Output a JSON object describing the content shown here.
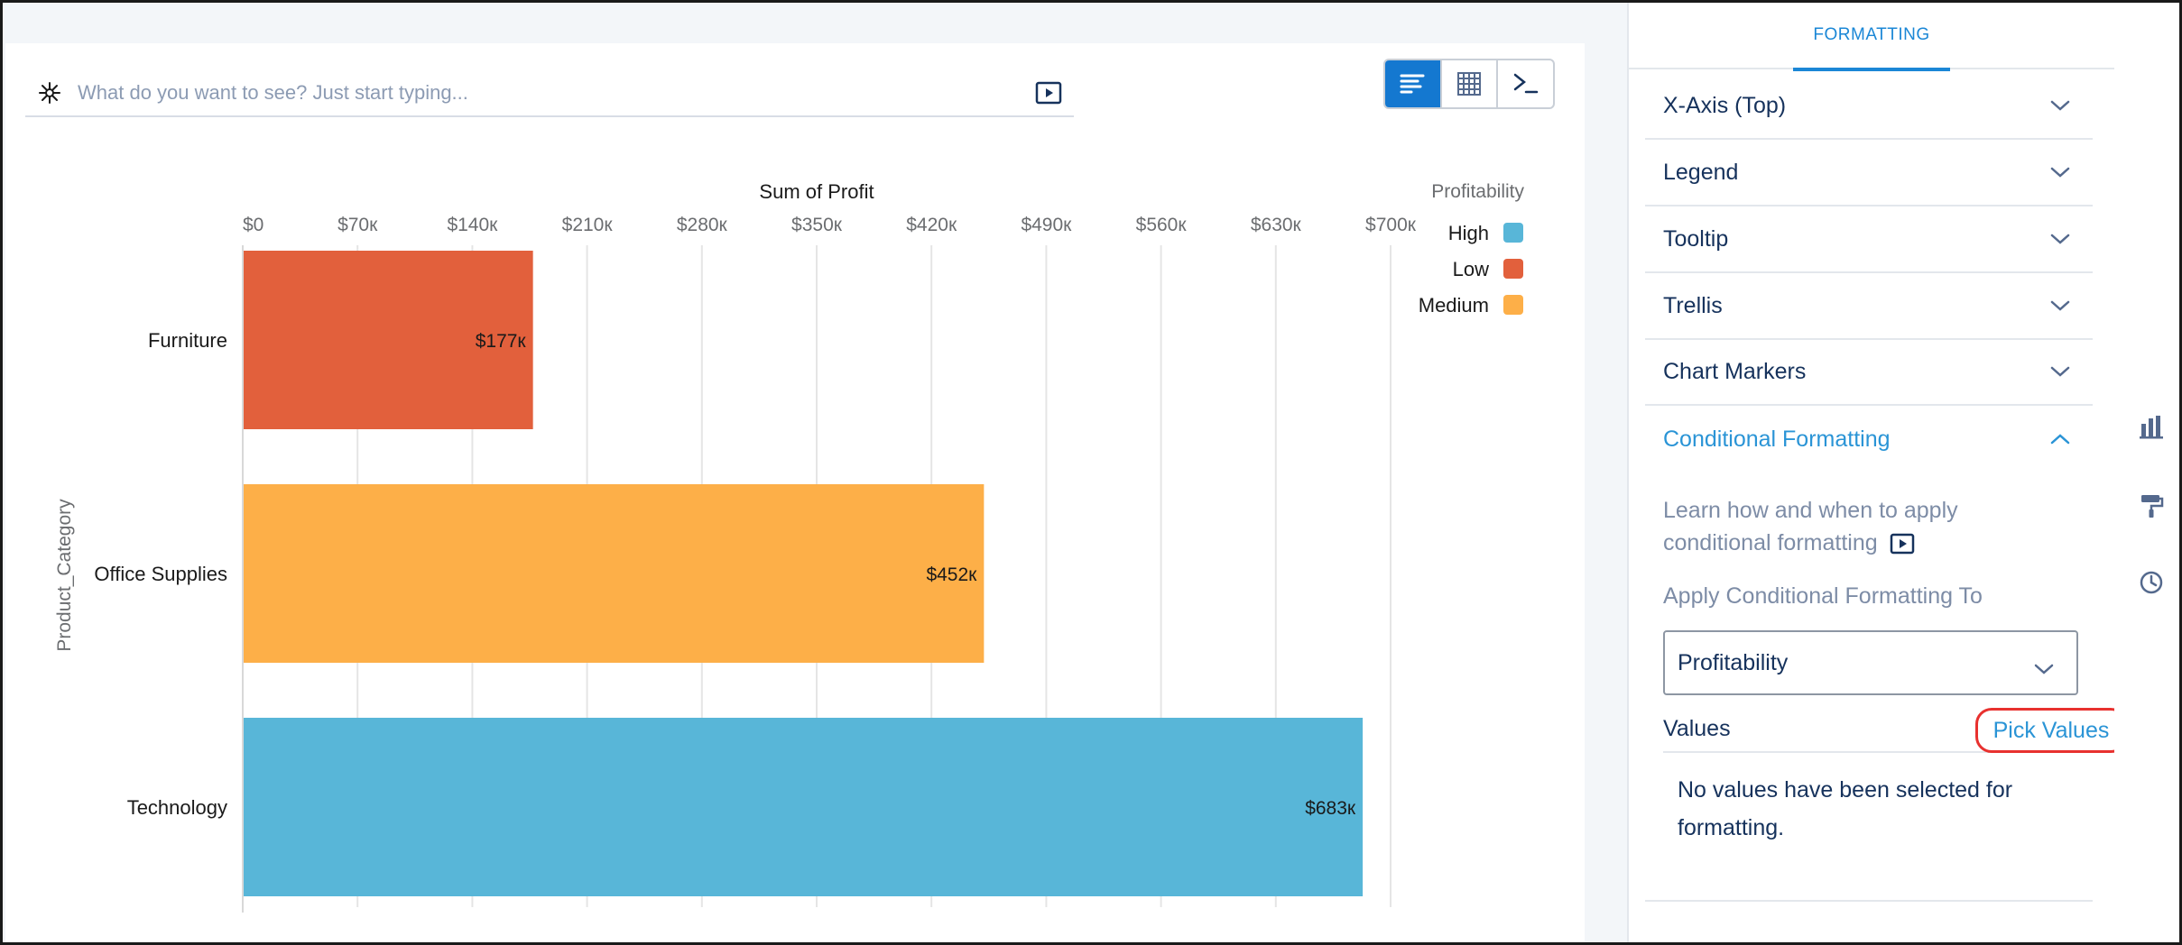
{
  "query": {
    "placeholder": "What do you want to see? Just start typing..."
  },
  "view_toggle": {
    "icons": [
      "bar-chart-icon",
      "table-icon",
      "terminal-icon"
    ],
    "active": "bar-chart-icon"
  },
  "chart_data": {
    "type": "bar",
    "orientation": "horizontal",
    "title": "Sum of Profit",
    "ylabel": "Product_Category",
    "categories": [
      "Furniture",
      "Office Supplies",
      "Technology"
    ],
    "values": [
      177000,
      452000,
      683000
    ],
    "value_labels": [
      "$177к",
      "$452к",
      "$683к"
    ],
    "groups": [
      "Low",
      "Medium",
      "High"
    ],
    "xlim": [
      0,
      700000
    ],
    "ticks": [
      0,
      70000,
      140000,
      210000,
      280000,
      350000,
      420000,
      490000,
      560000,
      630000,
      700000
    ],
    "tick_labels": [
      "$0",
      "$70к",
      "$140к",
      "$210к",
      "$280к",
      "$350к",
      "$420к",
      "$490к",
      "$560к",
      "$630к",
      "$700к"
    ],
    "axis_position": "top",
    "grid": true,
    "legend": {
      "title": "Profitability",
      "placement": "top-right",
      "items": [
        {
          "label": "High",
          "color": "#58b6d8"
        },
        {
          "label": "Low",
          "color": "#e2603c"
        },
        {
          "label": "Medium",
          "color": "#fdaf48"
        }
      ]
    }
  },
  "panel": {
    "tab": "FORMATTING",
    "sections": [
      {
        "title": "X-Axis (Top)",
        "open": false
      },
      {
        "title": "Legend",
        "open": false
      },
      {
        "title": "Tooltip",
        "open": false
      },
      {
        "title": "Trellis",
        "open": false
      },
      {
        "title": "Chart Markers",
        "open": false
      },
      {
        "title": "Conditional Formatting",
        "open": true
      }
    ],
    "conditional": {
      "help_text": "Learn how and when to apply conditional formatting",
      "apply_label": "Apply Conditional Formatting To",
      "apply_value": "Profitability",
      "values_label": "Values",
      "pick_values": "Pick Values",
      "empty_text": "No values have been selected for formatting."
    }
  },
  "rail": {
    "icons": [
      "widgets-icon",
      "paint-roller-icon",
      "history-icon"
    ]
  },
  "colors": {
    "accent": "#1b87d6",
    "link": "#2a94d6",
    "highlight": "#e8312f"
  }
}
